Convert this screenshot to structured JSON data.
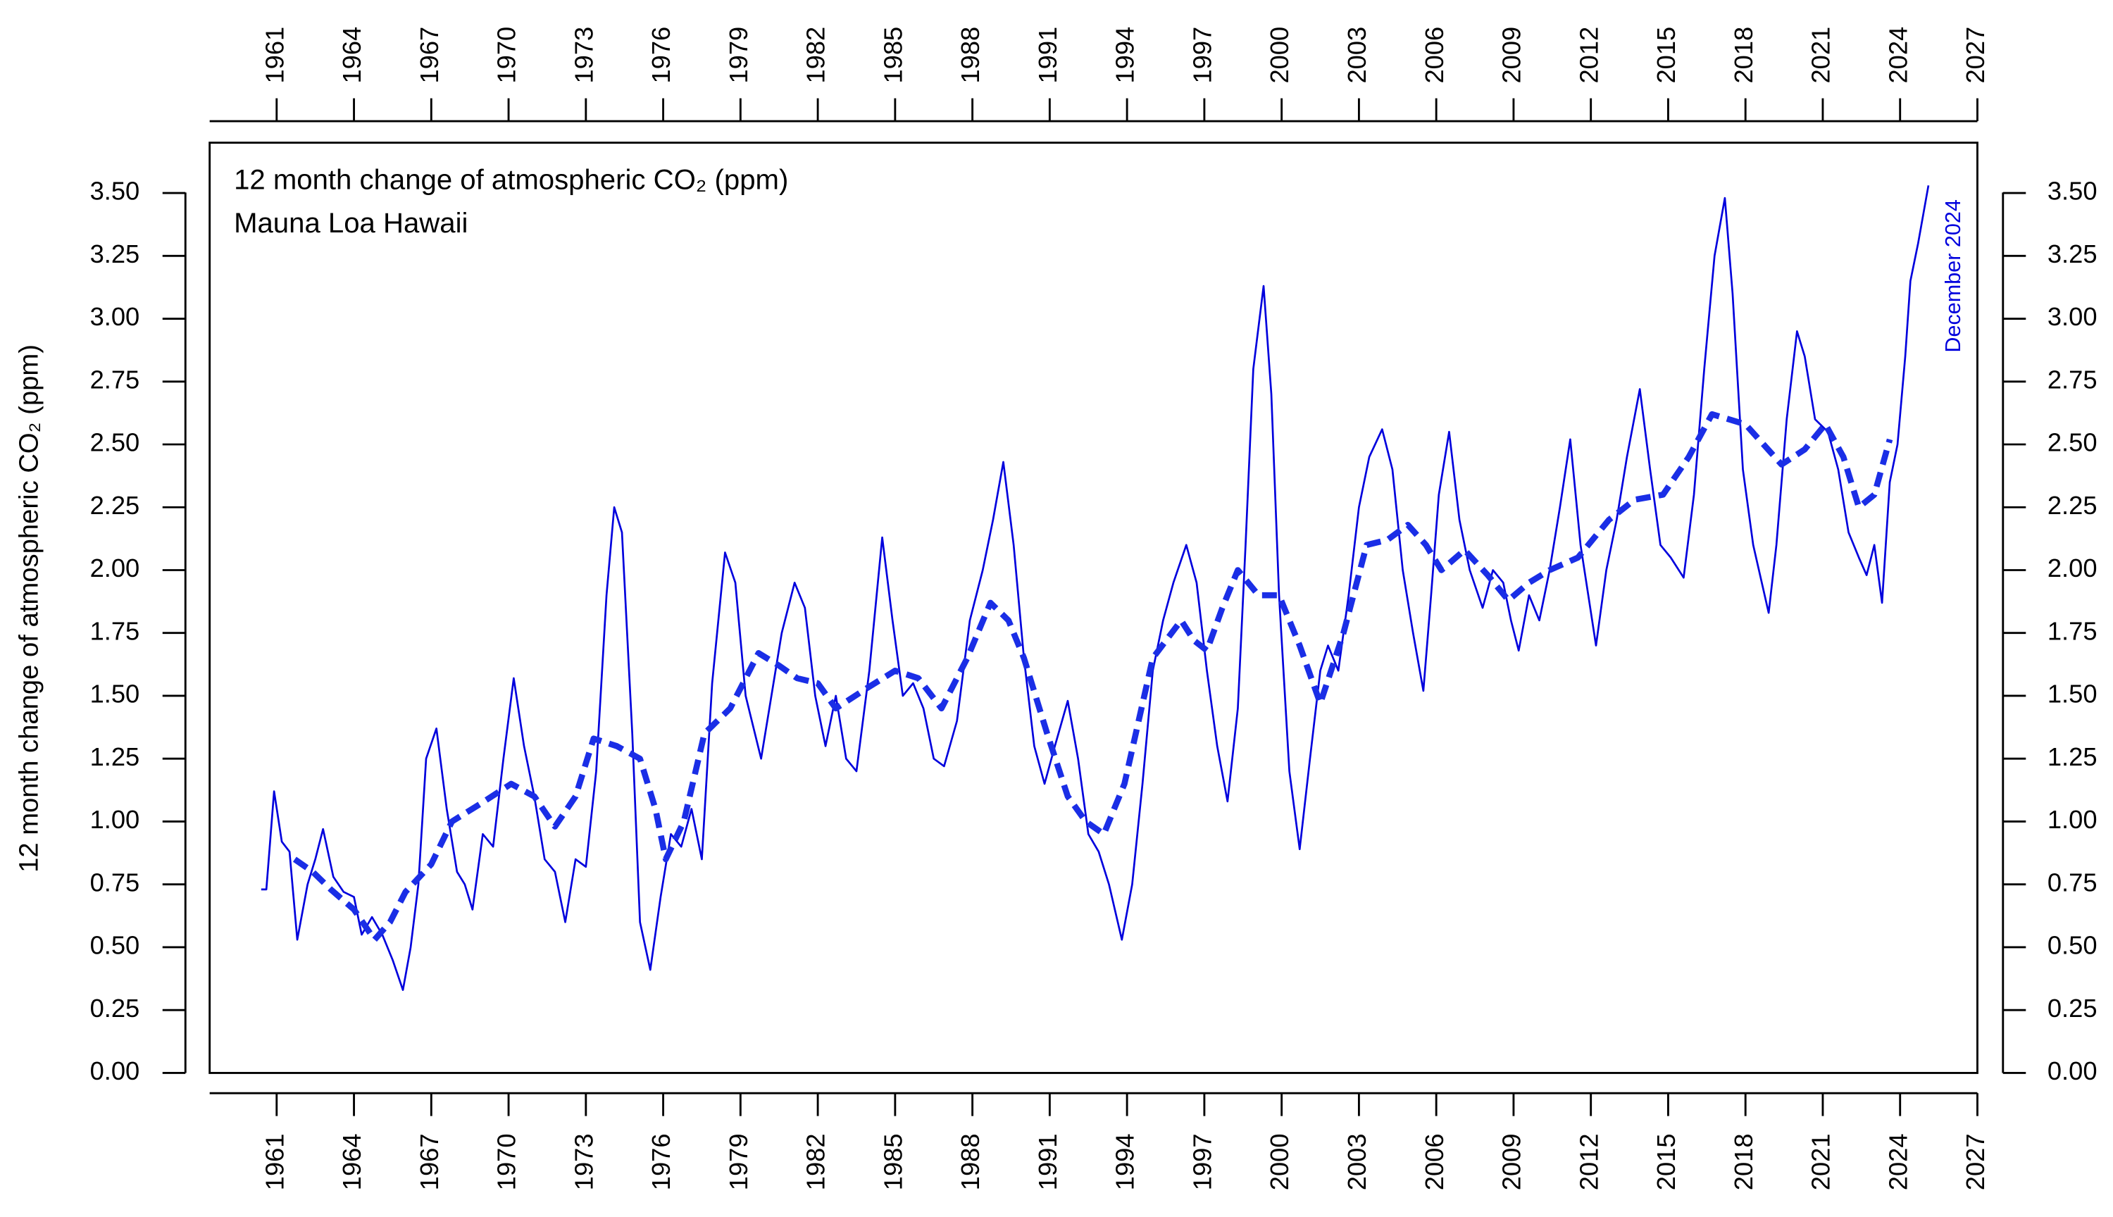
{
  "chart_data": {
    "type": "line",
    "title": "12 month change of atmospheric CO₂ (ppm)",
    "subtitle": "Mauna Loa Hawaii",
    "y_label": "12 month change of atmospheric CO₂ (ppm)",
    "annotation": "December 2024",
    "xlim": [
      1958.4,
      2027
    ],
    "ylim": [
      0,
      3.7
    ],
    "xticks": [
      1961,
      1964,
      1967,
      1970,
      1973,
      1976,
      1979,
      1982,
      1985,
      1988,
      1991,
      1994,
      1997,
      2000,
      2003,
      2006,
      2009,
      2012,
      2015,
      2018,
      2021,
      2024,
      2027
    ],
    "yticks": [
      {
        "value": 0,
        "label": "0.00"
      },
      {
        "value": 0.25,
        "label": "0.25"
      },
      {
        "value": 0.5,
        "label": "0.50"
      },
      {
        "value": 0.75,
        "label": "0.75"
      },
      {
        "value": 1,
        "label": "1.00"
      },
      {
        "value": 1.25,
        "label": "1.25"
      },
      {
        "value": 1.5,
        "label": "1.50"
      },
      {
        "value": 1.75,
        "label": "1.75"
      },
      {
        "value": 2,
        "label": "2.00"
      },
      {
        "value": 2.25,
        "label": "2.25"
      },
      {
        "value": 2.5,
        "label": "2.50"
      },
      {
        "value": 2.75,
        "label": "2.75"
      },
      {
        "value": 3,
        "label": "3.00"
      },
      {
        "value": 3.25,
        "label": "3.25"
      },
      {
        "value": 3.5,
        "label": "3.50"
      }
    ],
    "series": [
      {
        "color": "#0000dd",
        "dashed": false,
        "x": [
          1960.4,
          1960.6,
          1960.9,
          1961.2,
          1961.5,
          1961.8,
          1962.2,
          1962.5,
          1962.8,
          1963.2,
          1963.6,
          1964.0,
          1964.3,
          1964.7,
          1965.1,
          1965.5,
          1965.9,
          1966.2,
          1966.5,
          1966.8,
          1967.2,
          1967.6,
          1968.0,
          1968.3,
          1968.6,
          1969.0,
          1969.4,
          1969.8,
          1970.2,
          1970.6,
          1971.0,
          1971.4,
          1971.8,
          1972.2,
          1972.6,
          1973.0,
          1973.4,
          1973.8,
          1974.1,
          1974.4,
          1974.8,
          1975.1,
          1975.5,
          1975.9,
          1976.3,
          1976.7,
          1977.1,
          1977.5,
          1977.9,
          1978.4,
          1978.8,
          1979.2,
          1979.8,
          1980.2,
          1980.6,
          1981.1,
          1981.5,
          1981.9,
          1982.3,
          1982.7,
          1983.1,
          1983.5,
          1984.0,
          1984.5,
          1984.9,
          1985.3,
          1985.7,
          1986.1,
          1986.5,
          1986.9,
          1987.4,
          1987.9,
          1988.4,
          1988.8,
          1989.2,
          1989.6,
          1990.0,
          1990.4,
          1990.8,
          1991.2,
          1991.7,
          1992.1,
          1992.5,
          1992.9,
          1993.3,
          1993.8,
          1994.2,
          1994.6,
          1995.0,
          1995.4,
          1995.8,
          1996.3,
          1996.7,
          1997.1,
          1997.5,
          1997.9,
          1998.3,
          1998.6,
          1998.9,
          1999.3,
          1999.6,
          1999.9,
          2000.3,
          2000.7,
          2001.1,
          2001.5,
          2001.8,
          2002.2,
          2002.6,
          2003.0,
          2003.4,
          2003.9,
          2004.3,
          2004.7,
          2005.1,
          2005.5,
          2005.8,
          2006.1,
          2006.5,
          2006.9,
          2007.3,
          2007.8,
          2008.2,
          2008.6,
          2008.9,
          2009.2,
          2009.6,
          2010.0,
          2010.4,
          2010.8,
          2011.2,
          2011.6,
          2011.9,
          2012.2,
          2012.6,
          2013.0,
          2013.4,
          2013.9,
          2014.3,
          2014.7,
          2015.1,
          2015.6,
          2016.0,
          2016.4,
          2016.8,
          2017.2,
          2017.5,
          2017.9,
          2018.3,
          2018.9,
          2019.2,
          2019.6,
          2020.0,
          2020.3,
          2020.7,
          2021.2,
          2021.6,
          2022.0,
          2022.4,
          2022.7,
          2023.0,
          2023.3,
          2023.6,
          2023.9,
          2024.2,
          2024.4,
          2024.7,
          2025.1
        ],
        "values": [
          0.73,
          0.73,
          1.12,
          0.92,
          0.88,
          0.53,
          0.75,
          0.85,
          0.97,
          0.78,
          0.72,
          0.7,
          0.55,
          0.62,
          0.55,
          0.45,
          0.33,
          0.5,
          0.75,
          1.25,
          1.37,
          1.05,
          0.8,
          0.75,
          0.65,
          0.95,
          0.9,
          1.25,
          1.57,
          1.3,
          1.1,
          0.85,
          0.8,
          0.6,
          0.85,
          0.82,
          1.2,
          1.9,
          2.25,
          2.15,
          1.35,
          0.6,
          0.41,
          0.7,
          0.95,
          0.9,
          1.05,
          0.85,
          1.55,
          2.07,
          1.95,
          1.5,
          1.25,
          1.5,
          1.75,
          1.95,
          1.85,
          1.5,
          1.3,
          1.5,
          1.25,
          1.2,
          1.6,
          2.13,
          1.8,
          1.5,
          1.55,
          1.45,
          1.25,
          1.22,
          1.4,
          1.8,
          2.0,
          2.2,
          2.43,
          2.1,
          1.65,
          1.3,
          1.15,
          1.3,
          1.48,
          1.25,
          0.95,
          0.88,
          0.75,
          0.53,
          0.75,
          1.15,
          1.6,
          1.8,
          1.95,
          2.1,
          1.95,
          1.6,
          1.3,
          1.08,
          1.45,
          2.1,
          2.8,
          3.13,
          2.7,
          1.9,
          1.2,
          0.89,
          1.25,
          1.6,
          1.7,
          1.6,
          1.9,
          2.25,
          2.45,
          2.56,
          2.4,
          2.0,
          1.75,
          1.52,
          1.9,
          2.3,
          2.55,
          2.2,
          2.0,
          1.85,
          2.0,
          1.95,
          1.8,
          1.68,
          1.9,
          1.8,
          2.0,
          2.25,
          2.52,
          2.1,
          1.9,
          1.7,
          2.0,
          2.2,
          2.45,
          2.72,
          2.4,
          2.1,
          2.05,
          1.97,
          2.3,
          2.8,
          3.25,
          3.48,
          3.1,
          2.4,
          2.1,
          1.83,
          2.1,
          2.6,
          2.95,
          2.85,
          2.6,
          2.55,
          2.4,
          2.15,
          2.05,
          1.98,
          2.1,
          1.87,
          2.35,
          2.5,
          2.85,
          3.15,
          3.3,
          3.53
        ]
      },
      {
        "color": "#1a2ee6",
        "dashed": true,
        "x": [
          1961.7,
          1962.4,
          1963.1,
          1964.0,
          1964.8,
          1965.4,
          1966.0,
          1967.0,
          1967.8,
          1968.9,
          1970.1,
          1971.0,
          1971.8,
          1972.6,
          1973.3,
          1974.2,
          1975.1,
          1975.7,
          1976.1,
          1976.8,
          1977.6,
          1978.6,
          1979.7,
          1980.5,
          1981.2,
          1982.0,
          1982.7,
          1983.9,
          1985.0,
          1985.9,
          1986.8,
          1987.8,
          1988.7,
          1989.4,
          1990.0,
          1990.9,
          1991.7,
          1992.4,
          1993.1,
          1993.9,
          1995.0,
          1996.1,
          1996.6,
          1997.1,
          1997.7,
          1998.3,
          1999.1,
          1999.9,
          2000.7,
          2001.5,
          2002.4,
          2003.3,
          2004.1,
          2004.9,
          2005.6,
          2006.2,
          2007.1,
          2008.0,
          2008.8,
          2009.6,
          2010.4,
          2011.5,
          2012.7,
          2013.7,
          2014.8,
          2015.8,
          2016.7,
          2018.0,
          2019.4,
          2020.3,
          2021.1,
          2021.8,
          2022.4,
          2023.0,
          2023.6
        ],
        "values": [
          0.85,
          0.8,
          0.73,
          0.65,
          0.53,
          0.6,
          0.72,
          0.83,
          1.0,
          1.07,
          1.15,
          1.1,
          0.98,
          1.1,
          1.33,
          1.3,
          1.25,
          1.05,
          0.85,
          1.0,
          1.35,
          1.45,
          1.67,
          1.62,
          1.57,
          1.55,
          1.45,
          1.53,
          1.6,
          1.57,
          1.45,
          1.65,
          1.87,
          1.8,
          1.65,
          1.35,
          1.1,
          1.0,
          0.95,
          1.15,
          1.65,
          1.8,
          1.72,
          1.68,
          1.85,
          2.0,
          1.9,
          1.9,
          1.7,
          1.47,
          1.75,
          2.1,
          2.12,
          2.18,
          2.1,
          2.0,
          2.08,
          1.98,
          1.88,
          1.95,
          2.0,
          2.05,
          2.2,
          2.28,
          2.3,
          2.45,
          2.62,
          2.58,
          2.42,
          2.48,
          2.58,
          2.45,
          2.25,
          2.3,
          2.52
        ]
      }
    ]
  }
}
